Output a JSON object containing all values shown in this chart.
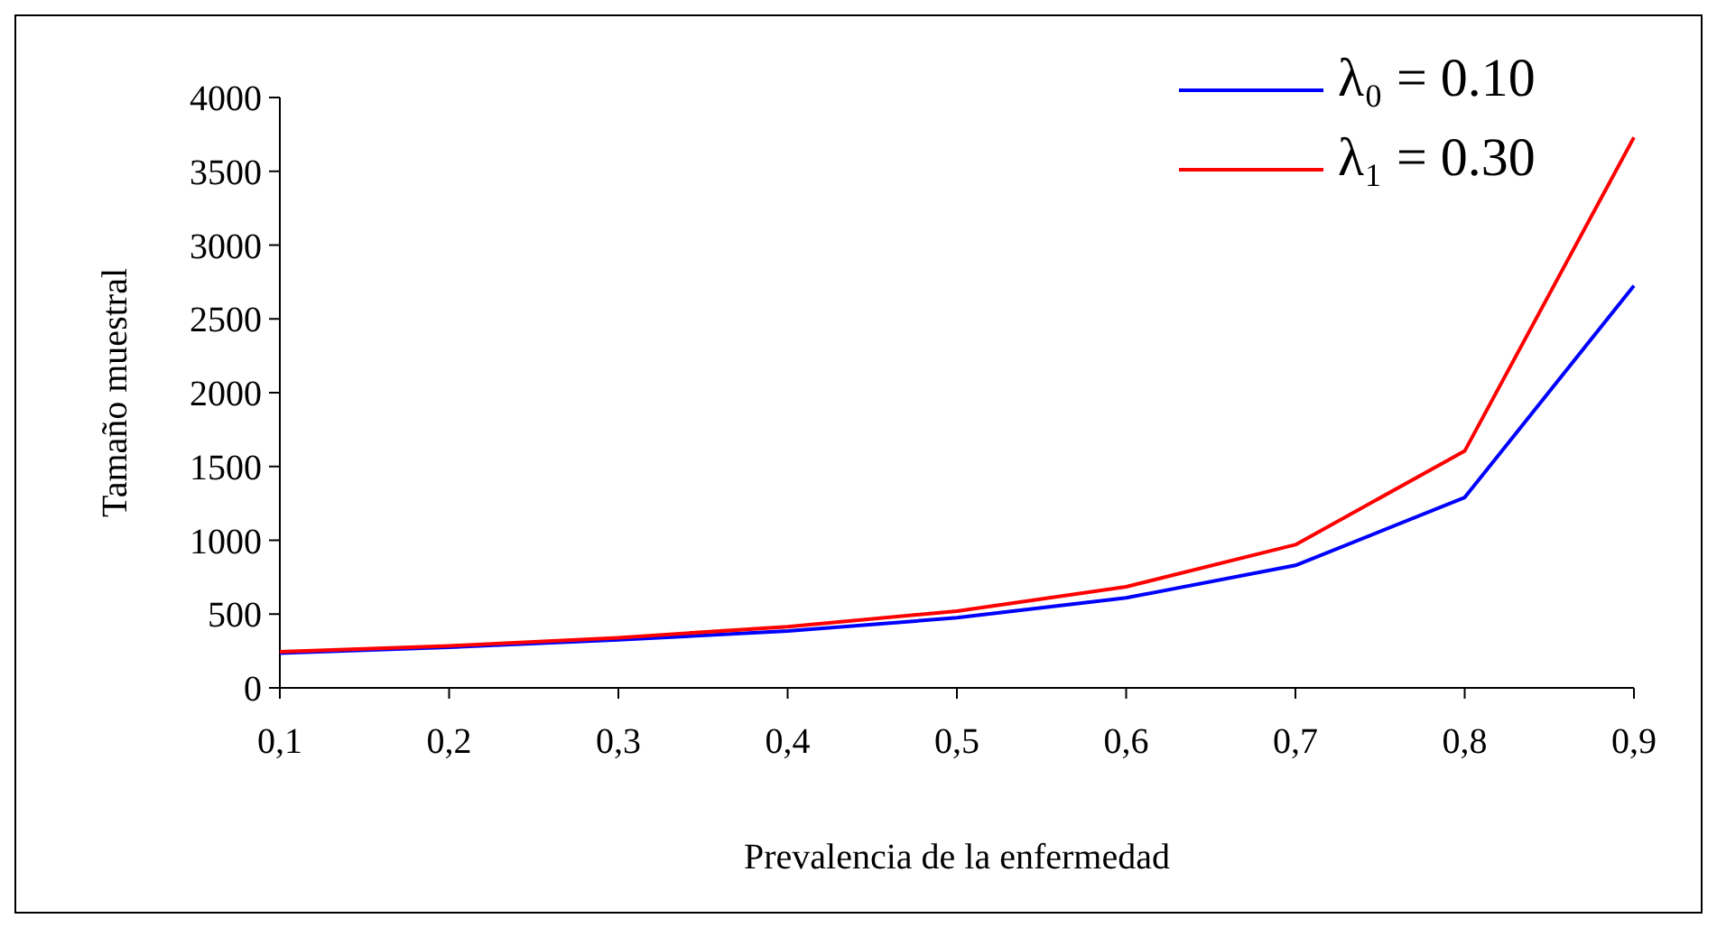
{
  "chart_data": {
    "type": "line",
    "xlabel": "Prevalencia de la enfermedad",
    "ylabel": "Tamaño muestral",
    "categories": [
      "0,1",
      "0,2",
      "0,3",
      "0,4",
      "0,5",
      "0,6",
      "0,7",
      "0,8",
      "0,9"
    ],
    "series": [
      {
        "name": "λ₀ = 0.10",
        "color": "#0000ff",
        "values": [
          235,
          275,
          325,
          385,
          475,
          610,
          830,
          1290,
          2725
        ]
      },
      {
        "name": "λ₁ = 0.30",
        "color": "#ff0000",
        "values": [
          245,
          285,
          340,
          415,
          520,
          685,
          970,
          1605,
          3730
        ]
      }
    ],
    "ylim": [
      0,
      4000
    ],
    "yticks": [
      0,
      500,
      1000,
      1500,
      2000,
      2500,
      3000,
      3500,
      4000
    ],
    "grid": false,
    "legend": "top right",
    "marker": "none",
    "line_style": "solid"
  }
}
